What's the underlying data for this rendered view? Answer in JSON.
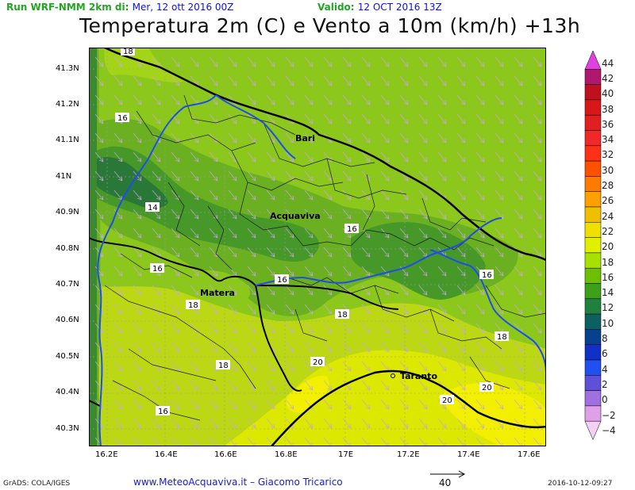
{
  "header": {
    "run_label": "Run WRF-NMM 2km di:",
    "run_date": "Mer, 12 ott 2016 00Z",
    "valid_label": "Valido:",
    "valid_date": "12 OCT 2016 13Z",
    "title": "Temperatura 2m (C) e Vento a 10m (km/h) +13h"
  },
  "axes": {
    "lat_labels": [
      "41.3N",
      "41.2N",
      "41.1N",
      "41N",
      "40.9N",
      "40.8N",
      "40.7N",
      "40.6N",
      "40.5N",
      "40.4N",
      "40.3N"
    ],
    "lon_labels": [
      "16.2E",
      "16.4E",
      "16.6E",
      "16.8E",
      "17E",
      "17.2E",
      "17.4E",
      "17.6E"
    ],
    "lat_range": [
      40.25,
      41.36
    ],
    "lon_range": [
      16.12,
      17.65
    ]
  },
  "colorbar": {
    "labels": [
      "44",
      "42",
      "40",
      "38",
      "36",
      "34",
      "32",
      "30",
      "28",
      "26",
      "24",
      "22",
      "20",
      "18",
      "16",
      "14",
      "12",
      "10",
      "8",
      "6",
      "4",
      "2",
      "0",
      "−2",
      "−4"
    ],
    "colors": [
      "#e040e0",
      "#b01870",
      "#c01020",
      "#d81818",
      "#e02020",
      "#f02828",
      "#ff3018",
      "#ff5000",
      "#ff7a00",
      "#ffa000",
      "#f0c000",
      "#f0e000",
      "#e0f000",
      "#a8e000",
      "#6cc000",
      "#3ca018",
      "#208040",
      "#0c6060",
      "#084090",
      "#1030c8",
      "#2050f0",
      "#6050d8",
      "#a070e0",
      "#e0a0e8",
      "#f4d0f4"
    ]
  },
  "places": {
    "bari": "Bari",
    "acquaviva": "Acquaviva",
    "matera": "Matera",
    "taranto": "Taranto"
  },
  "contour_labels": [
    "18",
    "16",
    "14",
    "16",
    "16",
    "16",
    "16",
    "18",
    "18",
    "18",
    "18",
    "20",
    "16",
    "20",
    "20"
  ],
  "footer": {
    "grads": "GrADS: COLA/IGES",
    "site": "www.MeteoAcquaviva.it  –  Giacomo Tricarico",
    "vector_ref": "40",
    "timestamp": "2016-10-12-09:27"
  },
  "colors": {
    "green_16": "#8cc81c",
    "green_15": "#6ab020",
    "green_14": "#469828",
    "green_12": "#2a7838",
    "yellow_19": "#bcd814",
    "yellow_20": "#dce800",
    "yellow_21": "#f2f000",
    "border_blue": "#1e4ee8"
  }
}
